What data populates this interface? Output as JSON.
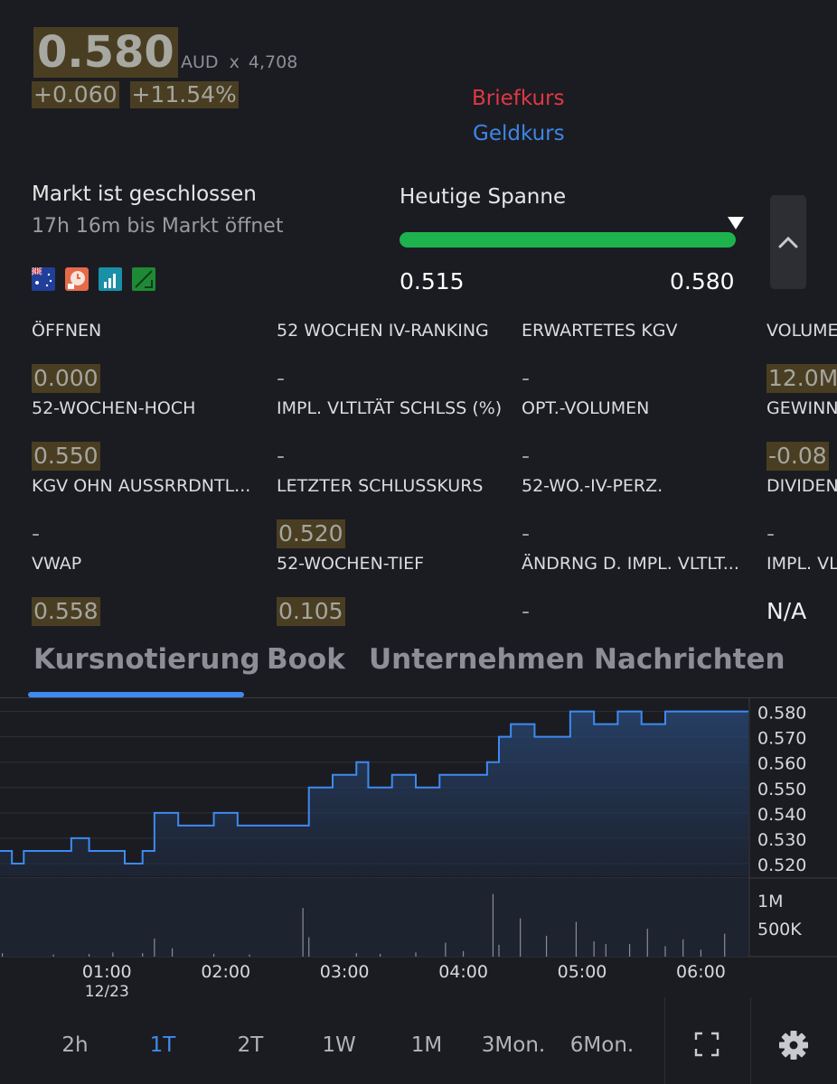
{
  "quote": {
    "price": "0.580",
    "currency": "AUD",
    "multiplier": "x",
    "volume_shown": "4,708",
    "change_abs": "+0.060",
    "change_pct": "+11.54%",
    "ask_label": "Briefkurs",
    "bid_label": "Geldkurs"
  },
  "market": {
    "status": "Markt ist geschlossen",
    "countdown": "17h 16m bis Markt öffnet",
    "icons": [
      "australia-flag-icon",
      "clock-badge-icon",
      "signal-chart-icon",
      "trend-chart-icon"
    ]
  },
  "range": {
    "title": "Heutige Spanne",
    "low": "0.515",
    "high": "0.580",
    "current_fraction": 1.0,
    "bar_color": "#1eb24e"
  },
  "stats": [
    {
      "label": "ÖFFNEN",
      "value": "0.000",
      "style": "hl"
    },
    {
      "label": "52 WOCHEN IV-RANKING",
      "value": "-",
      "style": "plain"
    },
    {
      "label": "ERWARTETES KGV",
      "value": "-",
      "style": "plain"
    },
    {
      "label": "VOLUMEN",
      "value": "12.0M",
      "style": "hl"
    },
    {
      "label": "52-WOCHEN-HOCH",
      "value": "0.550",
      "style": "hl"
    },
    {
      "label": "IMPL. VLTLTÄT SCHLSS (%)",
      "value": "-",
      "style": "plain"
    },
    {
      "label": "OPT.-VOLUMEN",
      "value": "-",
      "style": "plain"
    },
    {
      "label": "GEWINN",
      "value": "-0.08",
      "style": "hl"
    },
    {
      "label": "KGV OHN AUSSRRDNTL...",
      "value": "-",
      "style": "plain"
    },
    {
      "label": "LETZTER SCHLUSSKURS",
      "value": "0.520",
      "style": "hl"
    },
    {
      "label": "52-WO.-IV-PERZ.",
      "value": "-",
      "style": "plain"
    },
    {
      "label": "DIVIDEN",
      "value": "-",
      "style": "plain"
    },
    {
      "label": "VWAP",
      "value": "0.558",
      "style": "hl"
    },
    {
      "label": "52-WOCHEN-TIEF",
      "value": "0.105",
      "style": "hl"
    },
    {
      "label": "ÄNDRNG D. IMPL. VLTLT...",
      "value": "-",
      "style": "plain"
    },
    {
      "label": "IMPL. VL",
      "value": "N/A",
      "style": "na"
    }
  ],
  "tabs": [
    {
      "label": "Kursnotierung",
      "active": true
    },
    {
      "label": "Book",
      "active": false
    },
    {
      "label": "Unternehmen",
      "active": false
    },
    {
      "label": "Nachrichten",
      "active": false
    }
  ],
  "chart_data": {
    "type": "line",
    "price_axis_ticks": [
      "0.580",
      "0.570",
      "0.560",
      "0.550",
      "0.540",
      "0.530",
      "0.520"
    ],
    "ylim": [
      0.515,
      0.582
    ],
    "volume_axis_ticks": [
      "1M",
      "500K"
    ],
    "x_ticks": [
      "01:00",
      "02:00",
      "03:00",
      "04:00",
      "05:00",
      "06:00"
    ],
    "x_sub_label": "12/23",
    "xlim_hours": [
      0.1,
      6.4
    ],
    "line_color": "#3e8af0",
    "series": [
      {
        "values_x": [
          0.1,
          0.2,
          0.3,
          0.4,
          0.55,
          0.7,
          0.85,
          1.0,
          1.15,
          1.3,
          1.4,
          1.6,
          1.75,
          1.9,
          2.1,
          2.3,
          2.5,
          2.65,
          2.7,
          2.9,
          3.1,
          3.2,
          3.4,
          3.6,
          3.8,
          4.0,
          4.2,
          4.3,
          4.4,
          4.6,
          4.8,
          4.9,
          5.1,
          5.3,
          5.5,
          5.7,
          5.9,
          6.1,
          6.35
        ],
        "values_y": [
          0.525,
          0.52,
          0.525,
          0.525,
          0.525,
          0.53,
          0.525,
          0.525,
          0.52,
          0.525,
          0.54,
          0.535,
          0.535,
          0.54,
          0.535,
          0.535,
          0.535,
          0.535,
          0.55,
          0.555,
          0.56,
          0.55,
          0.555,
          0.55,
          0.555,
          0.555,
          0.56,
          0.57,
          0.575,
          0.57,
          0.57,
          0.58,
          0.575,
          0.58,
          0.575,
          0.58,
          0.58,
          0.58,
          0.58
        ]
      }
    ],
    "volume_bars": [
      {
        "x": 0.12,
        "v": 0.05
      },
      {
        "x": 0.55,
        "v": 0.03
      },
      {
        "x": 0.85,
        "v": 0.04
      },
      {
        "x": 1.05,
        "v": 0.06
      },
      {
        "x": 1.3,
        "v": 0.05
      },
      {
        "x": 1.4,
        "v": 0.26
      },
      {
        "x": 1.55,
        "v": 0.12
      },
      {
        "x": 1.9,
        "v": 0.04
      },
      {
        "x": 2.2,
        "v": 0.03
      },
      {
        "x": 2.65,
        "v": 0.7
      },
      {
        "x": 2.7,
        "v": 0.28
      },
      {
        "x": 3.1,
        "v": 0.05
      },
      {
        "x": 3.3,
        "v": 0.04
      },
      {
        "x": 3.6,
        "v": 0.06
      },
      {
        "x": 3.85,
        "v": 0.2
      },
      {
        "x": 4.0,
        "v": 0.08
      },
      {
        "x": 4.25,
        "v": 0.9
      },
      {
        "x": 4.3,
        "v": 0.17
      },
      {
        "x": 4.48,
        "v": 0.55
      },
      {
        "x": 4.7,
        "v": 0.3
      },
      {
        "x": 4.95,
        "v": 0.5
      },
      {
        "x": 5.1,
        "v": 0.22
      },
      {
        "x": 5.2,
        "v": 0.18
      },
      {
        "x": 5.4,
        "v": 0.18
      },
      {
        "x": 5.55,
        "v": 0.4
      },
      {
        "x": 5.7,
        "v": 0.15
      },
      {
        "x": 5.85,
        "v": 0.25
      },
      {
        "x": 6.0,
        "v": 0.1
      },
      {
        "x": 6.2,
        "v": 0.33
      }
    ]
  },
  "timeframes": [
    {
      "label": "2h",
      "active": false
    },
    {
      "label": "1T",
      "active": true
    },
    {
      "label": "2T",
      "active": false
    },
    {
      "label": "1W",
      "active": false
    },
    {
      "label": "1M",
      "active": false
    },
    {
      "label": "3Mon.",
      "active": false
    },
    {
      "label": "6Mon.",
      "active": false
    }
  ]
}
